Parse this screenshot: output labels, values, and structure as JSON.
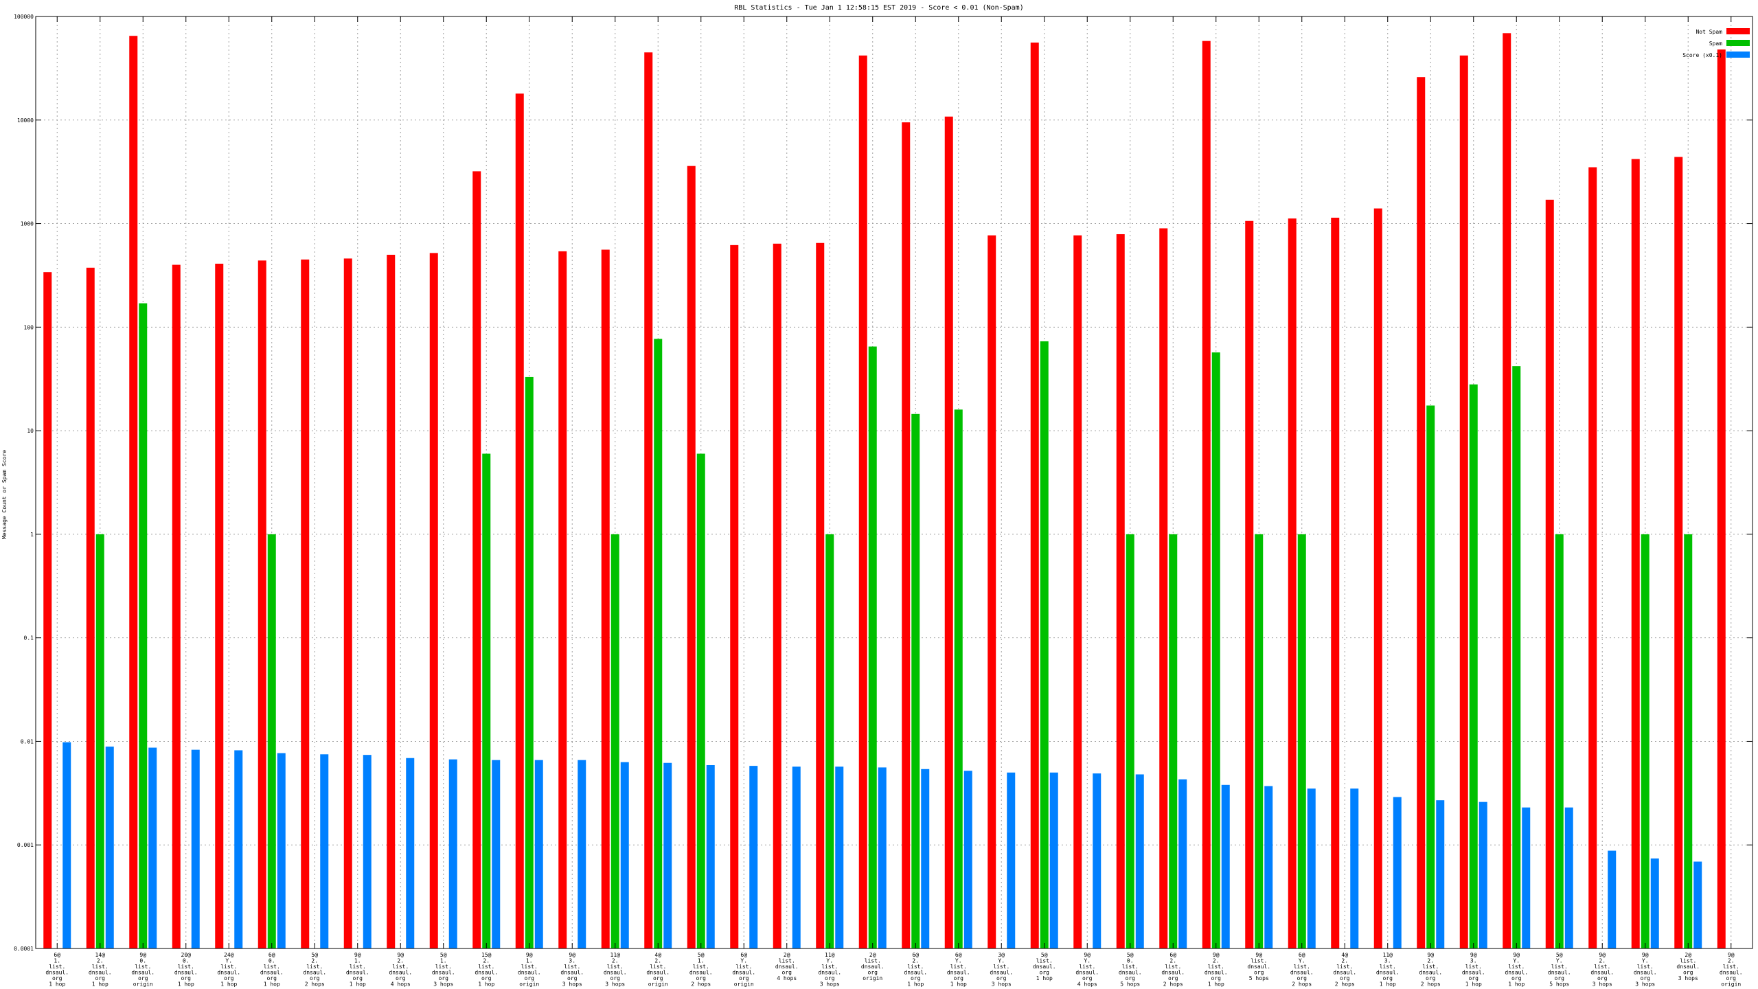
{
  "chart_data": {
    "type": "bar",
    "title": "RBL Statistics - Tue Jan  1 12:58:15 EST 2019 - Score < 0.01 (Non-Spam)",
    "ylabel": "Message Count or Spam Score",
    "xlabel": "",
    "yscale": "log",
    "ylim": [
      0.0001,
      100000
    ],
    "yticks": [
      "0.0001",
      "0.001",
      "0.01",
      "0.1",
      "1",
      "10",
      "100",
      "1000",
      "10000",
      "100000"
    ],
    "grid": true,
    "legend_position": "top-right",
    "categories": [
      [
        "6@",
        "1.",
        "list.",
        "dnsaul.",
        "org",
        "1 hop"
      ],
      [
        "14@",
        "2.",
        "list.",
        "dnsaul.",
        "org",
        "1 hop"
      ],
      [
        "9@",
        "0.",
        "list.",
        "dnsaul.",
        "org",
        "origin"
      ],
      [
        "20@",
        "0.",
        "list.",
        "dnsaul.",
        "org",
        "1 hop"
      ],
      [
        "24@",
        "Y.",
        "list.",
        "dnsaul.",
        "org",
        "1 hop"
      ],
      [
        "6@",
        "0.",
        "list.",
        "dnsaul.",
        "org",
        "1 hop"
      ],
      [
        "5@",
        "2.",
        "list.",
        "dnsaul.",
        "org",
        "2 hops"
      ],
      [
        "9@",
        "1.",
        "list.",
        "dnsaul.",
        "org",
        "1 hop"
      ],
      [
        "9@",
        "2.",
        "list.",
        "dnsaul.",
        "org",
        "4 hops"
      ],
      [
        "5@",
        "1.",
        "list.",
        "dnsaul.",
        "org",
        "3 hops"
      ],
      [
        "15@",
        "2.",
        "list.",
        "dnsaul.",
        "org",
        "1 hop"
      ],
      [
        "9@",
        "1.",
        "list.",
        "dnsaul.",
        "org",
        "origin"
      ],
      [
        "9@",
        "3.",
        "list.",
        "dnsaul.",
        "org",
        "3 hops"
      ],
      [
        "11@",
        "2.",
        "list.",
        "dnsaul.",
        "org",
        "3 hops"
      ],
      [
        "4@",
        "2.",
        "list.",
        "dnsaul.",
        "org",
        "origin"
      ],
      [
        "5@",
        "1.",
        "list.",
        "dnsaul.",
        "org",
        "2 hops"
      ],
      [
        "6@",
        "Y.",
        "list.",
        "dnsaul.",
        "org",
        "origin"
      ],
      [
        "2@",
        "list.",
        "dnsaul.",
        "org",
        "4 hops"
      ],
      [
        "11@",
        "Y.",
        "list.",
        "dnsaul.",
        "org",
        "3 hops"
      ],
      [
        "2@",
        "list.",
        "dnsaul.",
        "org",
        "origin"
      ],
      [
        "6@",
        "2.",
        "list.",
        "dnsaul.",
        "org",
        "1 hop"
      ],
      [
        "6@",
        "Y.",
        "list.",
        "dnsaul.",
        "org",
        "1 hop"
      ],
      [
        "3@",
        "Y.",
        "list.",
        "dnsaul.",
        "org",
        "3 hops"
      ],
      [
        "5@",
        "list.",
        "dnsaul.",
        "org",
        "1 hop"
      ],
      [
        "9@",
        "Y.",
        "list.",
        "dnsaul.",
        "org",
        "4 hops"
      ],
      [
        "5@",
        "0.",
        "list.",
        "dnsaul.",
        "org",
        "5 hops"
      ],
      [
        "6@",
        "2.",
        "list.",
        "dnsaul.",
        "org",
        "2 hops"
      ],
      [
        "9@",
        "2.",
        "list.",
        "dnsaul.",
        "org",
        "1 hop"
      ],
      [
        "9@",
        "list.",
        "dnsaul.",
        "org",
        "5 hops"
      ],
      [
        "6@",
        "Y.",
        "list.",
        "dnsaul.",
        "org",
        "2 hops"
      ],
      [
        "4@",
        "2.",
        "list.",
        "dnsaul.",
        "org",
        "2 hops"
      ],
      [
        "11@",
        "3.",
        "list.",
        "dnsaul.",
        "org",
        "1 hop"
      ],
      [
        "9@",
        "2.",
        "list.",
        "dnsaul.",
        "org",
        "2 hops"
      ],
      [
        "9@",
        "3.",
        "list.",
        "dnsaul.",
        "org",
        "1 hop"
      ],
      [
        "9@",
        "Y.",
        "list.",
        "dnsaul.",
        "org",
        "1 hop"
      ],
      [
        "5@",
        "Y.",
        "list.",
        "dnsaul.",
        "org",
        "5 hops"
      ],
      [
        "9@",
        "2.",
        "list.",
        "dnsaul.",
        "org",
        "3 hops"
      ],
      [
        "9@",
        "Y.",
        "list.",
        "dnsaul.",
        "org",
        "3 hops"
      ],
      [
        "2@",
        "list.",
        "dnsaul.",
        "org",
        "3 hops"
      ],
      [
        "9@",
        "2.",
        "list.",
        "dnsaul.",
        "org",
        "origin"
      ]
    ],
    "series": [
      {
        "name": "Not Spam",
        "color": "#ff0000",
        "values": [
          340,
          375,
          65000,
          400,
          410,
          440,
          450,
          460,
          500,
          520,
          3200,
          18000,
          540,
          560,
          45000,
          3600,
          620,
          640,
          650,
          42000,
          9500,
          10800,
          770,
          56000,
          770,
          790,
          900,
          58000,
          1060,
          1120,
          1140,
          1400,
          26000,
          42000,
          69000,
          1700,
          3500,
          4200,
          4400,
          48000
        ]
      },
      {
        "name": "Spam",
        "color": "#00c000",
        "values": [
          null,
          1,
          170,
          null,
          null,
          1,
          null,
          null,
          null,
          null,
          6,
          33,
          null,
          1,
          77,
          6,
          null,
          null,
          1,
          65,
          14.5,
          16,
          null,
          73,
          null,
          1,
          1,
          57,
          1,
          1,
          null,
          null,
          17.5,
          28,
          42,
          1,
          null,
          1,
          1,
          null
        ]
      },
      {
        "name": "Score (x0.1)",
        "color": "#0080ff",
        "values": [
          0.0098,
          0.0089,
          0.0087,
          0.0083,
          0.0082,
          0.0077,
          0.0075,
          0.0074,
          0.0069,
          0.0067,
          0.0066,
          0.0066,
          0.0066,
          0.0063,
          0.0062,
          0.0059,
          0.0058,
          0.0057,
          0.0057,
          0.0056,
          0.0054,
          0.0052,
          0.005,
          0.005,
          0.0049,
          0.0048,
          0.0043,
          0.0038,
          0.0037,
          0.0035,
          0.0035,
          0.0029,
          0.0027,
          0.0026,
          0.0023,
          0.0023,
          0.00088,
          0.00074,
          0.00069,
          null
        ]
      }
    ]
  }
}
